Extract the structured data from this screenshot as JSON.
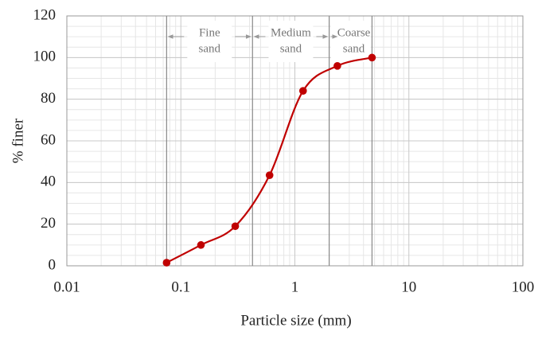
{
  "chart_data": {
    "type": "line",
    "x_label": "Particle size (mm)",
    "y_label": "% finer",
    "x": [
      0.075,
      0.15,
      0.3,
      0.6,
      1.18,
      2.36,
      4.75
    ],
    "series": [
      {
        "color": "#c00000",
        "values": [
          1.5,
          10,
          19,
          43.5,
          84,
          96,
          100
        ]
      }
    ],
    "xscale": "log",
    "xlim": [
      0.01,
      100
    ],
    "xticks": [
      0.01,
      0.1,
      1,
      10,
      100
    ],
    "ylim": [
      0,
      120
    ],
    "yticks": [
      0,
      20,
      40,
      60,
      80,
      100,
      120
    ],
    "grid": true,
    "minor_grid": true,
    "boundaries": [
      0.075,
      0.425,
      2,
      4.75
    ],
    "zones": [
      [
        "Fine",
        "sand"
      ],
      [
        "Medium",
        "sand"
      ],
      [
        "Coarse",
        "sand"
      ]
    ]
  }
}
